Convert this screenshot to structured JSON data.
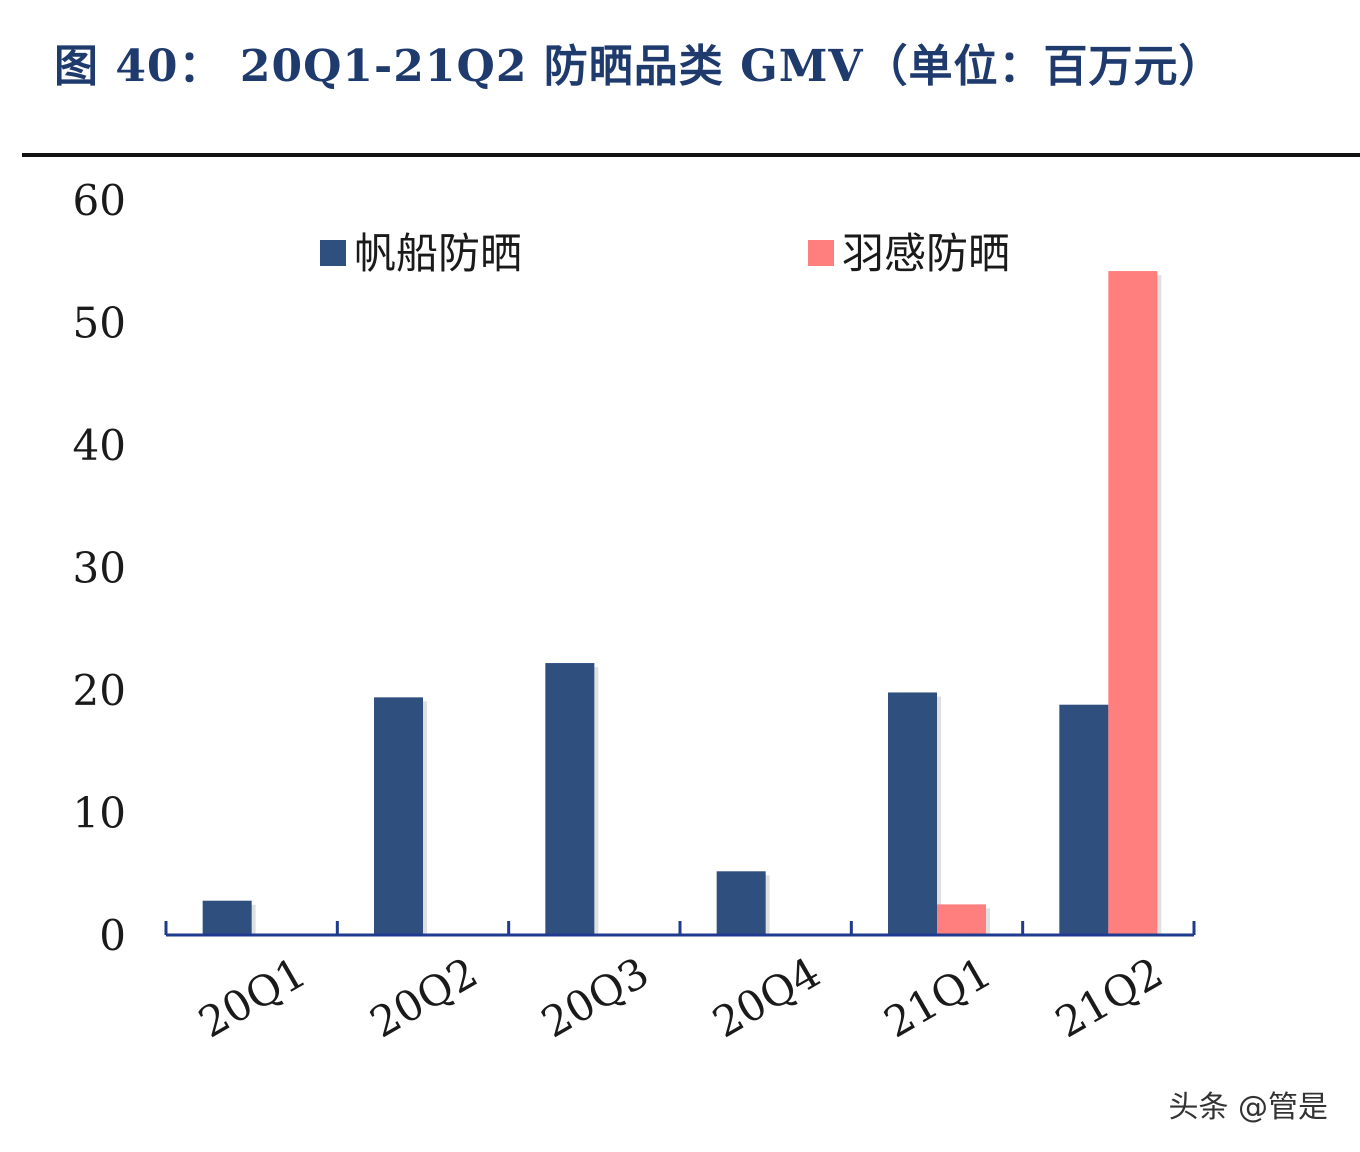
{
  "figure": {
    "title": "图 40：  20Q1-21Q2 防晒品类 GMV（单位：百万元）"
  },
  "watermark": "头条 @管是",
  "colors": {
    "series_1": "#2f4f7f",
    "series_2": "#ff7f7f",
    "title": "#1f3b6e",
    "axis": "#1f3b8f",
    "text": "#1a1a1a"
  },
  "chart_data": {
    "type": "bar",
    "categories": [
      "20Q1",
      "20Q2",
      "20Q3",
      "20Q4",
      "21Q1",
      "21Q2"
    ],
    "series": [
      {
        "name": "帆船防晒",
        "values": [
          2.8,
          19.4,
          22.2,
          5.2,
          19.8,
          18.8
        ],
        "color": "#2f4f7f"
      },
      {
        "name": "羽感防晒",
        "values": [
          0,
          0,
          0,
          0,
          2.5,
          54.2
        ],
        "color": "#ff7f7f"
      }
    ],
    "ylim": [
      0,
      60
    ],
    "yticks": [
      0,
      10,
      20,
      30,
      40,
      50,
      60
    ],
    "grid": false,
    "legend": "top",
    "xtick_rotation": "rotated"
  }
}
